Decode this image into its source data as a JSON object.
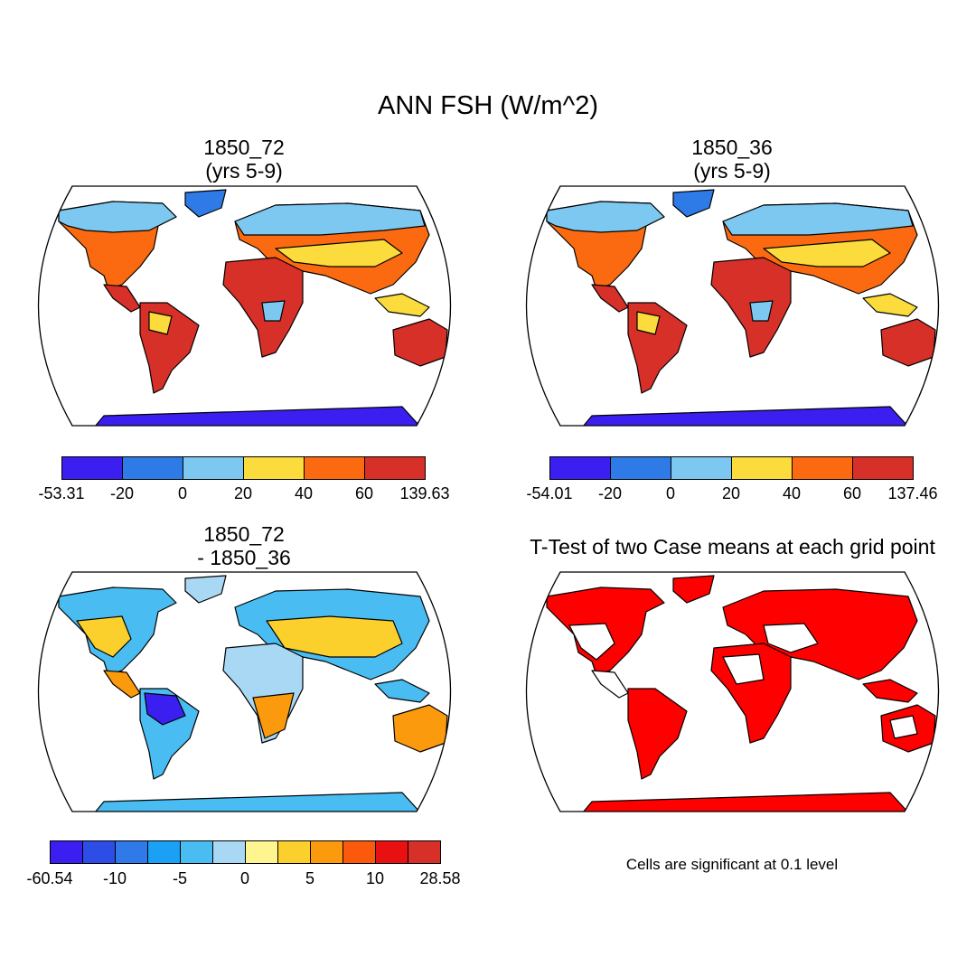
{
  "figure_title": "ANN FSH (W/m^2)",
  "footnote": "Cells are significant at 0.1 level",
  "chart_data": [
    {
      "type": "heatmap",
      "name": "case1",
      "title_line1": "1850_72",
      "title_line2": "(yrs 5-9)",
      "colorbar": {
        "tick_labels": [
          "-53.31",
          "-20",
          "0",
          "20",
          "40",
          "60",
          "139.63"
        ],
        "colors": [
          "#3a1ff0",
          "#2e7ae6",
          "#7dc8f0",
          "#fbdc3c",
          "#fb6a10",
          "#d63028"
        ],
        "range": [
          -53.31,
          139.63
        ]
      }
    },
    {
      "type": "heatmap",
      "name": "case2",
      "title_line1": "1850_36",
      "title_line2": "(yrs 5-9)",
      "colorbar": {
        "tick_labels": [
          "-54.01",
          "-20",
          "0",
          "20",
          "40",
          "60",
          "137.46"
        ],
        "colors": [
          "#3a1ff0",
          "#2e7ae6",
          "#7dc8f0",
          "#fbdc3c",
          "#fb6a10",
          "#d63028"
        ],
        "range": [
          -54.01,
          137.46
        ]
      }
    },
    {
      "type": "heatmap",
      "name": "difference",
      "title_line1": "1850_72",
      "title_line2": "- 1850_36",
      "colorbar": {
        "tick_labels": [
          "-60.54",
          "-10",
          "-5",
          "0",
          "5",
          "10",
          "28.58"
        ],
        "colors": [
          "#3a1ff0",
          "#2d4ee6",
          "#2f7ae8",
          "#1aa0f5",
          "#49bcf2",
          "#a8d8f4",
          "#fff590",
          "#fbd02c",
          "#fb9a0c",
          "#fb5a0c",
          "#e81010",
          "#d63028"
        ],
        "range": [
          -60.54,
          28.58
        ]
      }
    },
    {
      "type": "heatmap",
      "name": "t-test",
      "title_line1": "T-Test of two Case means at each grid point",
      "significance_color": "#ff0000"
    }
  ]
}
